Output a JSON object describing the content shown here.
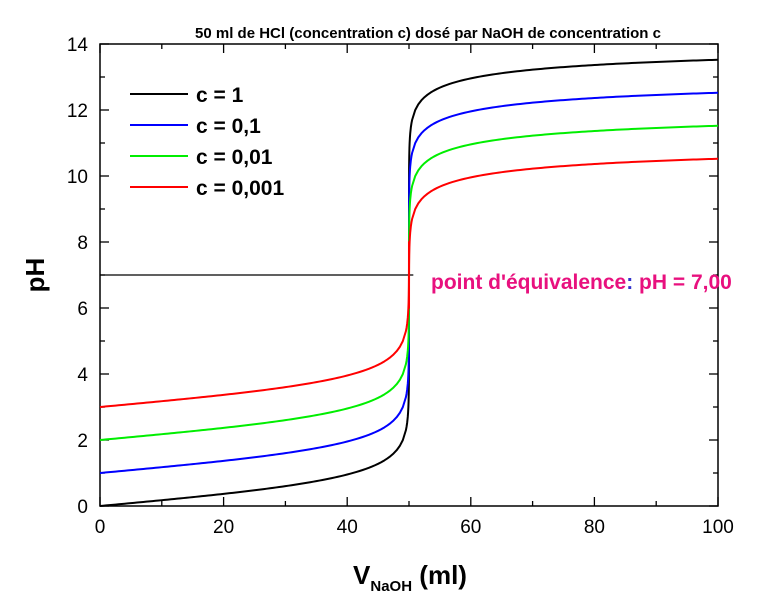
{
  "chart_data": {
    "type": "line",
    "title": "50 ml de HCl (concentration c) dosé par NaOH de concentration c",
    "xlabel": {
      "main": "V",
      "sub": "NaOH",
      "unit": " (ml)"
    },
    "ylabel": "pH",
    "xlim": [
      0,
      100
    ],
    "ylim": [
      0,
      14
    ],
    "xticks": [
      0,
      20,
      40,
      60,
      80,
      100
    ],
    "yticks": [
      0,
      2,
      4,
      6,
      8,
      10,
      12,
      14
    ],
    "grid": false,
    "legend_position": "top-left",
    "equivalence_volume": 50,
    "series": [
      {
        "name": "c = 1",
        "color": "#000000",
        "concentration": 1,
        "x": [
          0,
          10,
          20,
          30,
          40,
          45,
          48,
          49,
          49.5,
          50,
          50.5,
          51,
          52,
          55,
          60,
          70,
          80,
          90,
          100
        ],
        "y": [
          0,
          0.18,
          0.37,
          0.6,
          0.95,
          1.28,
          1.69,
          2.0,
          2.3,
          7.0,
          11.7,
          12.0,
          12.29,
          12.68,
          12.96,
          13.22,
          13.35,
          13.43,
          13.52
        ]
      },
      {
        "name": "c = 0,1",
        "color": "#0000ff",
        "concentration": 0.1,
        "x": [
          0,
          10,
          20,
          30,
          40,
          45,
          48,
          49,
          49.5,
          50,
          50.5,
          51,
          52,
          55,
          60,
          70,
          80,
          90,
          100
        ],
        "y": [
          1.0,
          1.18,
          1.37,
          1.6,
          1.95,
          2.28,
          2.69,
          3.0,
          3.3,
          7.0,
          10.7,
          11.0,
          11.29,
          11.68,
          11.96,
          12.22,
          12.35,
          12.43,
          12.52
        ]
      },
      {
        "name": "c = 0,01",
        "color": "#00ee00",
        "concentration": 0.01,
        "x": [
          0,
          10,
          20,
          30,
          40,
          45,
          48,
          49,
          49.5,
          50,
          50.5,
          51,
          52,
          55,
          60,
          70,
          80,
          90,
          100
        ],
        "y": [
          2.0,
          2.18,
          2.37,
          2.6,
          2.95,
          3.28,
          3.69,
          4.0,
          4.3,
          7.0,
          9.7,
          10.0,
          10.29,
          10.68,
          10.96,
          11.22,
          11.35,
          11.43,
          11.52
        ]
      },
      {
        "name": "c = 0,001",
        "color": "#ff0000",
        "concentration": 0.001,
        "x": [
          0,
          10,
          20,
          30,
          40,
          45,
          48,
          49,
          49.5,
          50,
          50.5,
          51,
          52,
          55,
          60,
          70,
          80,
          90,
          100
        ],
        "y": [
          3.0,
          3.18,
          3.37,
          3.6,
          3.95,
          4.28,
          4.69,
          5.0,
          5.3,
          7.0,
          8.7,
          9.0,
          9.29,
          9.68,
          9.96,
          10.22,
          10.35,
          10.43,
          10.52
        ]
      }
    ],
    "equivalence_line": {
      "y": 7.0,
      "x_start": 0,
      "x_end": 50.7,
      "color": "#000000"
    },
    "annotation": {
      "text_main": "point d'équivalence",
      "text_colon": ":",
      "text_value": " pH = 7,00",
      "color": "#e8107e",
      "colon_color": "#3333cc"
    }
  }
}
